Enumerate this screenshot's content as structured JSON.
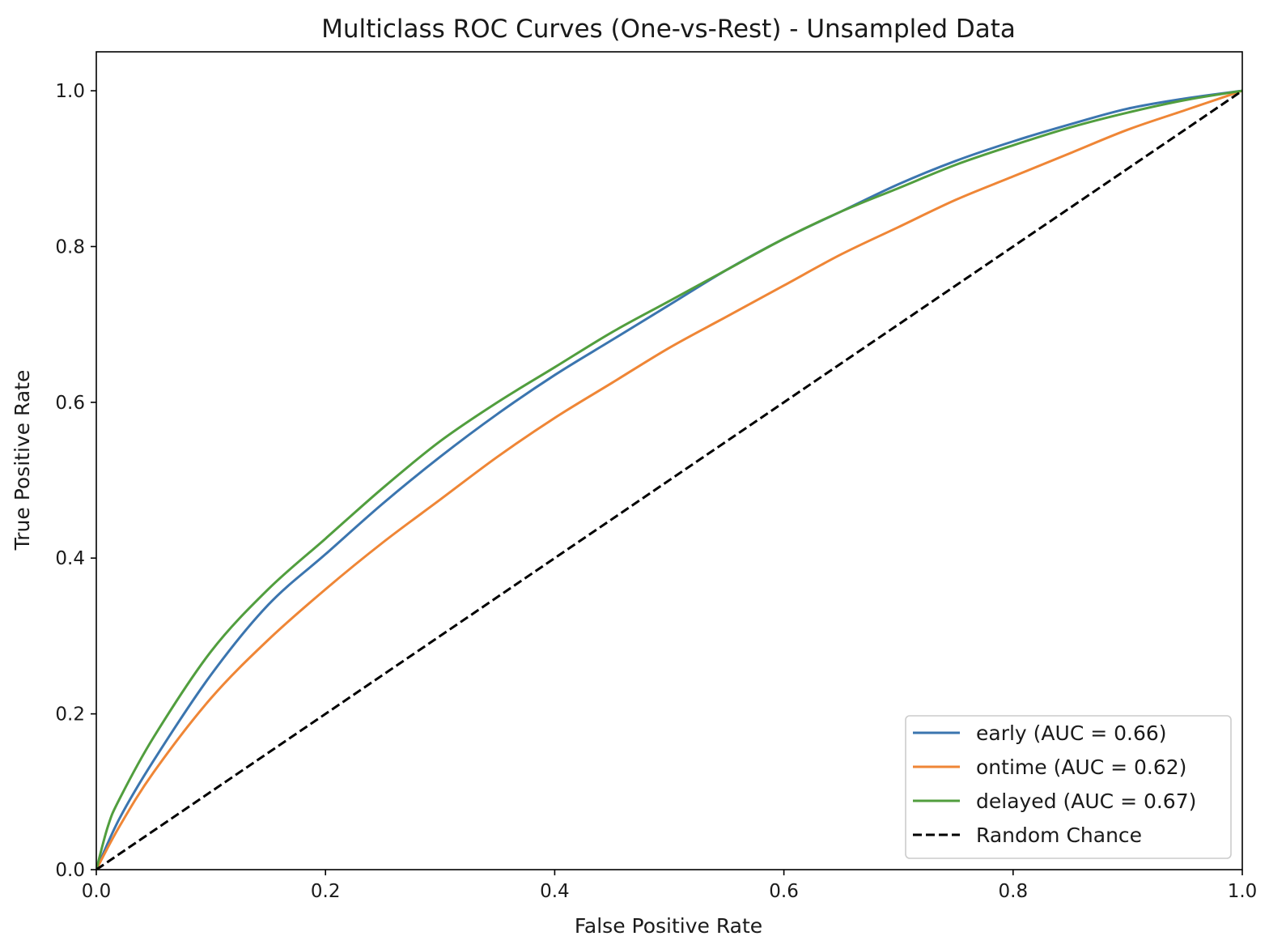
{
  "chart_data": {
    "type": "line",
    "title": "Multiclass ROC Curves (One-vs-Rest) - Unsampled Data",
    "xlabel": "False Positive Rate",
    "ylabel": "True Positive Rate",
    "xlim": [
      0.0,
      1.0
    ],
    "ylim": [
      0.0,
      1.05
    ],
    "xticks": [
      0.0,
      0.2,
      0.4,
      0.6,
      0.8,
      1.0
    ],
    "yticks": [
      0.0,
      0.2,
      0.4,
      0.6,
      0.8,
      1.0
    ],
    "xtick_labels": [
      "0.0",
      "0.2",
      "0.4",
      "0.6",
      "0.8",
      "1.0"
    ],
    "ytick_labels": [
      "0.0",
      "0.2",
      "0.4",
      "0.6",
      "0.8",
      "1.0"
    ],
    "grid": false,
    "legend_position": "lower-right",
    "series": [
      {
        "name": "early (AUC = 0.66)",
        "color": "#3b75af",
        "style": "solid",
        "x": [
          0.0,
          0.02,
          0.05,
          0.1,
          0.15,
          0.2,
          0.25,
          0.3,
          0.35,
          0.4,
          0.45,
          0.5,
          0.55,
          0.6,
          0.65,
          0.7,
          0.75,
          0.8,
          0.85,
          0.9,
          0.95,
          1.0
        ],
        "y": [
          0.0,
          0.065,
          0.14,
          0.25,
          0.34,
          0.405,
          0.47,
          0.53,
          0.585,
          0.635,
          0.68,
          0.725,
          0.77,
          0.81,
          0.845,
          0.88,
          0.91,
          0.935,
          0.957,
          0.977,
          0.99,
          1.0
        ]
      },
      {
        "name": "ontime (AUC = 0.62)",
        "color": "#ef8636",
        "style": "solid",
        "x": [
          0.0,
          0.02,
          0.05,
          0.1,
          0.15,
          0.2,
          0.25,
          0.3,
          0.35,
          0.4,
          0.45,
          0.5,
          0.55,
          0.6,
          0.65,
          0.7,
          0.75,
          0.8,
          0.85,
          0.9,
          0.95,
          1.0
        ],
        "y": [
          0.0,
          0.055,
          0.125,
          0.22,
          0.295,
          0.36,
          0.42,
          0.475,
          0.53,
          0.58,
          0.625,
          0.67,
          0.71,
          0.75,
          0.79,
          0.825,
          0.86,
          0.89,
          0.92,
          0.95,
          0.975,
          1.0
        ]
      },
      {
        "name": "delayed (AUC = 0.67)",
        "color": "#519e3e",
        "style": "solid",
        "x": [
          0.0,
          0.01,
          0.02,
          0.05,
          0.1,
          0.15,
          0.2,
          0.25,
          0.3,
          0.35,
          0.4,
          0.45,
          0.5,
          0.55,
          0.6,
          0.65,
          0.7,
          0.75,
          0.8,
          0.85,
          0.9,
          0.95,
          1.0
        ],
        "y": [
          0.0,
          0.055,
          0.09,
          0.17,
          0.28,
          0.36,
          0.425,
          0.49,
          0.55,
          0.6,
          0.645,
          0.69,
          0.73,
          0.77,
          0.81,
          0.845,
          0.875,
          0.905,
          0.93,
          0.953,
          0.972,
          0.988,
          1.0
        ]
      },
      {
        "name": "Random Chance",
        "color": "#000000",
        "style": "dashed",
        "x": [
          0.0,
          1.0
        ],
        "y": [
          0.0,
          1.0
        ]
      }
    ]
  }
}
